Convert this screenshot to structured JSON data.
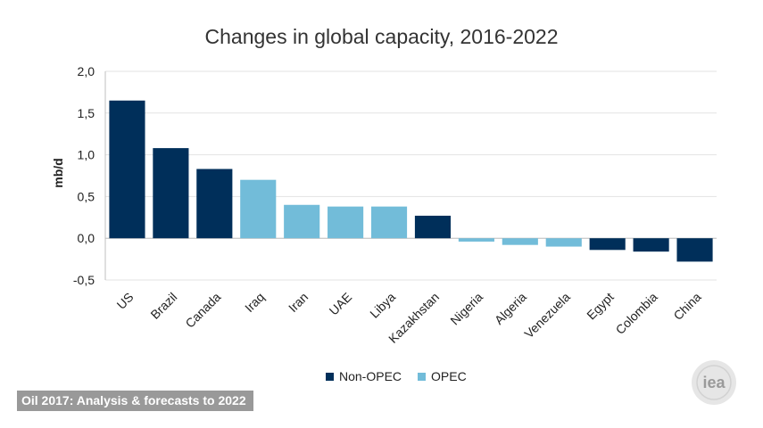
{
  "chart_data": {
    "type": "bar",
    "title": "Changes in global capacity, 2016-2022",
    "ylabel": "mb/d",
    "ylim": [
      -0.5,
      2.0
    ],
    "yticks": [
      "2,0",
      "1,5",
      "1,0",
      "0,5",
      "0,0",
      "-0,5"
    ],
    "ytick_values": [
      2.0,
      1.5,
      1.0,
      0.5,
      0.0,
      -0.5
    ],
    "grid": true,
    "legend_position": "bottom",
    "categories": [
      "US",
      "Brazil",
      "Canada",
      "Iraq",
      "Iran",
      "UAE",
      "Libya",
      "Kazakhstan",
      "Nigeria",
      "Algeria",
      "Venezuela",
      "Egypt",
      "Colombia",
      "China"
    ],
    "values": [
      1.65,
      1.08,
      0.83,
      0.7,
      0.4,
      0.38,
      0.38,
      0.27,
      -0.04,
      -0.08,
      -0.1,
      -0.14,
      -0.16,
      -0.28
    ],
    "groups": [
      "Non-OPEC",
      "Non-OPEC",
      "Non-OPEC",
      "OPEC",
      "OPEC",
      "OPEC",
      "OPEC",
      "Non-OPEC",
      "OPEC",
      "OPEC",
      "OPEC",
      "Non-OPEC",
      "Non-OPEC",
      "Non-OPEC"
    ],
    "series": [
      {
        "name": "Non-OPEC",
        "color": "#002f5a"
      },
      {
        "name": "OPEC",
        "color": "#72bcd9"
      }
    ]
  },
  "footer": {
    "source": "Oil 2017:  Analysis & forecasts to 2022"
  },
  "logo": {
    "text": "iea",
    "icon": "iea-logo-icon"
  }
}
